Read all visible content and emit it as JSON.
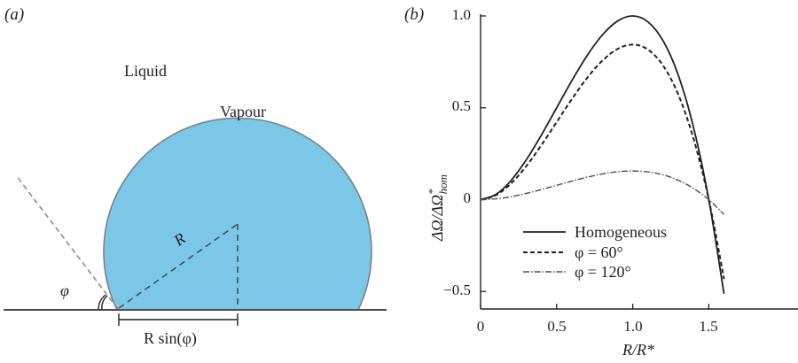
{
  "panel_a": {
    "label": "(a)",
    "liquid_label": "Liquid",
    "vapour_label": "Vapour",
    "radius_label": "R",
    "angle_label": "φ",
    "base_label": "R sin(φ)",
    "bubble_color": "#7bc7e8",
    "outline_color": "#808080"
  },
  "panel_b": {
    "label": "(b)",
    "x_label": "R/R*",
    "y_label": "ΔΩ/ΔΩ*hom",
    "x_ticks": [
      "0",
      "0.5",
      "1.0",
      "1.5"
    ],
    "y_ticks": [
      "−0.5",
      "0",
      "0.5",
      "1.0"
    ],
    "legend": [
      {
        "name": "Homogeneous",
        "style": "solid"
      },
      {
        "name": "φ = 60°",
        "style": "dashed"
      },
      {
        "name": "φ = 120°",
        "style": "dash-dot"
      }
    ]
  },
  "chart_data": {
    "type": "line",
    "title": "",
    "xlabel": "R/R*",
    "ylabel": "ΔΩ/ΔΩ*hom",
    "xlim": [
      0,
      1.6
    ],
    "ylim": [
      -0.6,
      1.0
    ],
    "x": [
      0,
      0.1,
      0.2,
      0.3,
      0.4,
      0.5,
      0.6,
      0.7,
      0.8,
      0.9,
      1.0,
      1.1,
      1.2,
      1.3,
      1.4,
      1.5,
      1.6
    ],
    "series": [
      {
        "name": "Homogeneous",
        "style": "solid",
        "values": [
          0,
          0.028,
          0.104,
          0.216,
          0.352,
          0.5,
          0.648,
          0.784,
          0.896,
          0.972,
          1.0,
          0.968,
          0.864,
          0.676,
          0.392,
          0.0,
          -0.512
        ]
      },
      {
        "name": "φ = 60°",
        "style": "dashed",
        "values": [
          0,
          0.024,
          0.088,
          0.182,
          0.297,
          0.422,
          0.547,
          0.662,
          0.756,
          0.82,
          0.844,
          0.817,
          0.729,
          0.571,
          0.331,
          0.0,
          -0.432
        ]
      },
      {
        "name": "φ = 120°",
        "style": "dash-dot",
        "values": [
          0,
          0.0044,
          0.016,
          0.034,
          0.055,
          0.078,
          0.101,
          0.122,
          0.14,
          0.152,
          0.156,
          0.151,
          0.135,
          0.105,
          0.061,
          0.0,
          -0.08
        ]
      }
    ]
  }
}
